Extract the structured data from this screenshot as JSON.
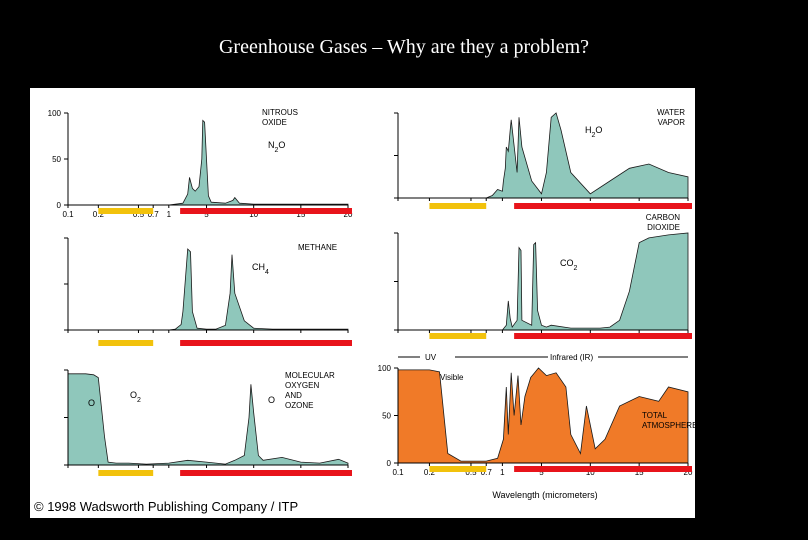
{
  "slide": {
    "title": "Greenhouse Gases – Why are they a problem?"
  },
  "figure": {
    "credit": "© 1998 Wadsworth Publishing Company / ITP"
  },
  "colors": {
    "gas_fill": "#8fc7bb",
    "atmosphere_fill": "#f07a28",
    "visible_bar": "#f2c20c",
    "infrared_bar": "#e8141b"
  },
  "chart_data": {
    "type": "area",
    "xlabel": "Wavelength (micrometers)",
    "x_ticks": [
      "0.1",
      "0.2",
      "0.5",
      "0.7",
      "1",
      "5",
      "10",
      "15",
      "20"
    ],
    "y_ticks": [
      "0",
      "50",
      "100"
    ],
    "ylim": [
      0,
      100
    ],
    "panels": [
      {
        "name": "NITROUS OXIDE",
        "formula": "N2O",
        "x": [
          0.1,
          0.3,
          0.7,
          1,
          2.5,
          3,
          3.2,
          3.5,
          3.8,
          4.2,
          4.5,
          4.6,
          4.8,
          5,
          5.2,
          5.5,
          7,
          7.8,
          8,
          8.5,
          10,
          12,
          14,
          16,
          18,
          20
        ],
        "y": [
          0,
          0,
          0,
          0,
          2,
          12,
          30,
          18,
          15,
          20,
          50,
          92,
          90,
          50,
          10,
          3,
          2,
          5,
          8,
          2,
          1,
          1,
          1,
          1,
          1,
          1
        ]
      },
      {
        "name": "WATER VAPOR",
        "formula": "H2O",
        "x": [
          0.1,
          0.5,
          0.7,
          0.8,
          0.9,
          1,
          1.1,
          1.3,
          1.4,
          1.6,
          1.8,
          1.9,
          2.5,
          2.7,
          3,
          4,
          5,
          5.5,
          6,
          6.5,
          7,
          8,
          10,
          12,
          14,
          16,
          18,
          20
        ],
        "y": [
          0,
          0,
          0,
          3,
          10,
          8,
          20,
          35,
          60,
          55,
          80,
          92,
          30,
          95,
          60,
          20,
          5,
          30,
          95,
          100,
          80,
          30,
          5,
          20,
          35,
          40,
          30,
          25
        ]
      },
      {
        "name": "METHANE",
        "formula": "CH4",
        "x": [
          0.1,
          0.7,
          1,
          1.7,
          2.3,
          2.5,
          3,
          3.3,
          3.5,
          4,
          5,
          6,
          7,
          7.5,
          7.7,
          8,
          9,
          10,
          12,
          14,
          16,
          18,
          20
        ],
        "y": [
          0,
          0,
          0,
          1,
          6,
          20,
          88,
          85,
          20,
          2,
          1,
          1,
          5,
          40,
          82,
          40,
          10,
          2,
          1,
          1,
          1,
          1,
          1
        ]
      },
      {
        "name": "CARBON DIOXIDE",
        "formula": "CO2",
        "x": [
          0.1,
          0.7,
          1,
          1.4,
          1.6,
          1.8,
          2,
          2.5,
          2.7,
          2.9,
          3,
          4,
          4.2,
          4.4,
          4.6,
          5,
          5.5,
          6,
          8,
          10,
          11,
          12,
          13,
          14,
          15,
          16,
          18,
          20
        ],
        "y": [
          0,
          0,
          0,
          5,
          30,
          12,
          3,
          10,
          85,
          82,
          10,
          5,
          88,
          90,
          20,
          5,
          3,
          5,
          2,
          2,
          2,
          3,
          10,
          40,
          90,
          95,
          98,
          100
        ]
      },
      {
        "name": "MOLECULAR OXYGEN AND OZONE",
        "formula": "O2",
        "formula_2": "O",
        "x": [
          0.1,
          0.12,
          0.15,
          0.18,
          0.2,
          0.23,
          0.25,
          0.3,
          0.4,
          0.6,
          1,
          3,
          5,
          7,
          8,
          9,
          9.5,
          9.7,
          10,
          10.5,
          11,
          13,
          15,
          17,
          19,
          20
        ],
        "y": [
          96,
          96,
          96,
          95,
          92,
          30,
          3,
          2,
          2,
          1,
          2,
          5,
          3,
          1,
          5,
          10,
          50,
          85,
          55,
          10,
          5,
          8,
          3,
          2,
          6,
          2
        ]
      },
      {
        "name": "TOTAL ATMOSPHERE",
        "x": [
          0.1,
          0.2,
          0.25,
          0.3,
          0.4,
          0.5,
          0.7,
          0.9,
          1.1,
          1.4,
          1.6,
          1.9,
          2.2,
          2.6,
          2.9,
          3.3,
          3.9,
          4.3,
          4.7,
          5.5,
          6.5,
          7.5,
          8,
          9,
          9.6,
          10.5,
          11.5,
          13,
          15,
          17,
          18,
          20
        ],
        "y": [
          98,
          98,
          96,
          10,
          2,
          2,
          2,
          5,
          25,
          80,
          30,
          95,
          50,
          92,
          40,
          70,
          90,
          95,
          100,
          92,
          95,
          80,
          30,
          10,
          60,
          15,
          25,
          60,
          70,
          65,
          80,
          75
        ]
      }
    ],
    "annotations": {
      "uv": "UV",
      "visible": "Visible",
      "infrared": "Infrared (IR)"
    }
  }
}
